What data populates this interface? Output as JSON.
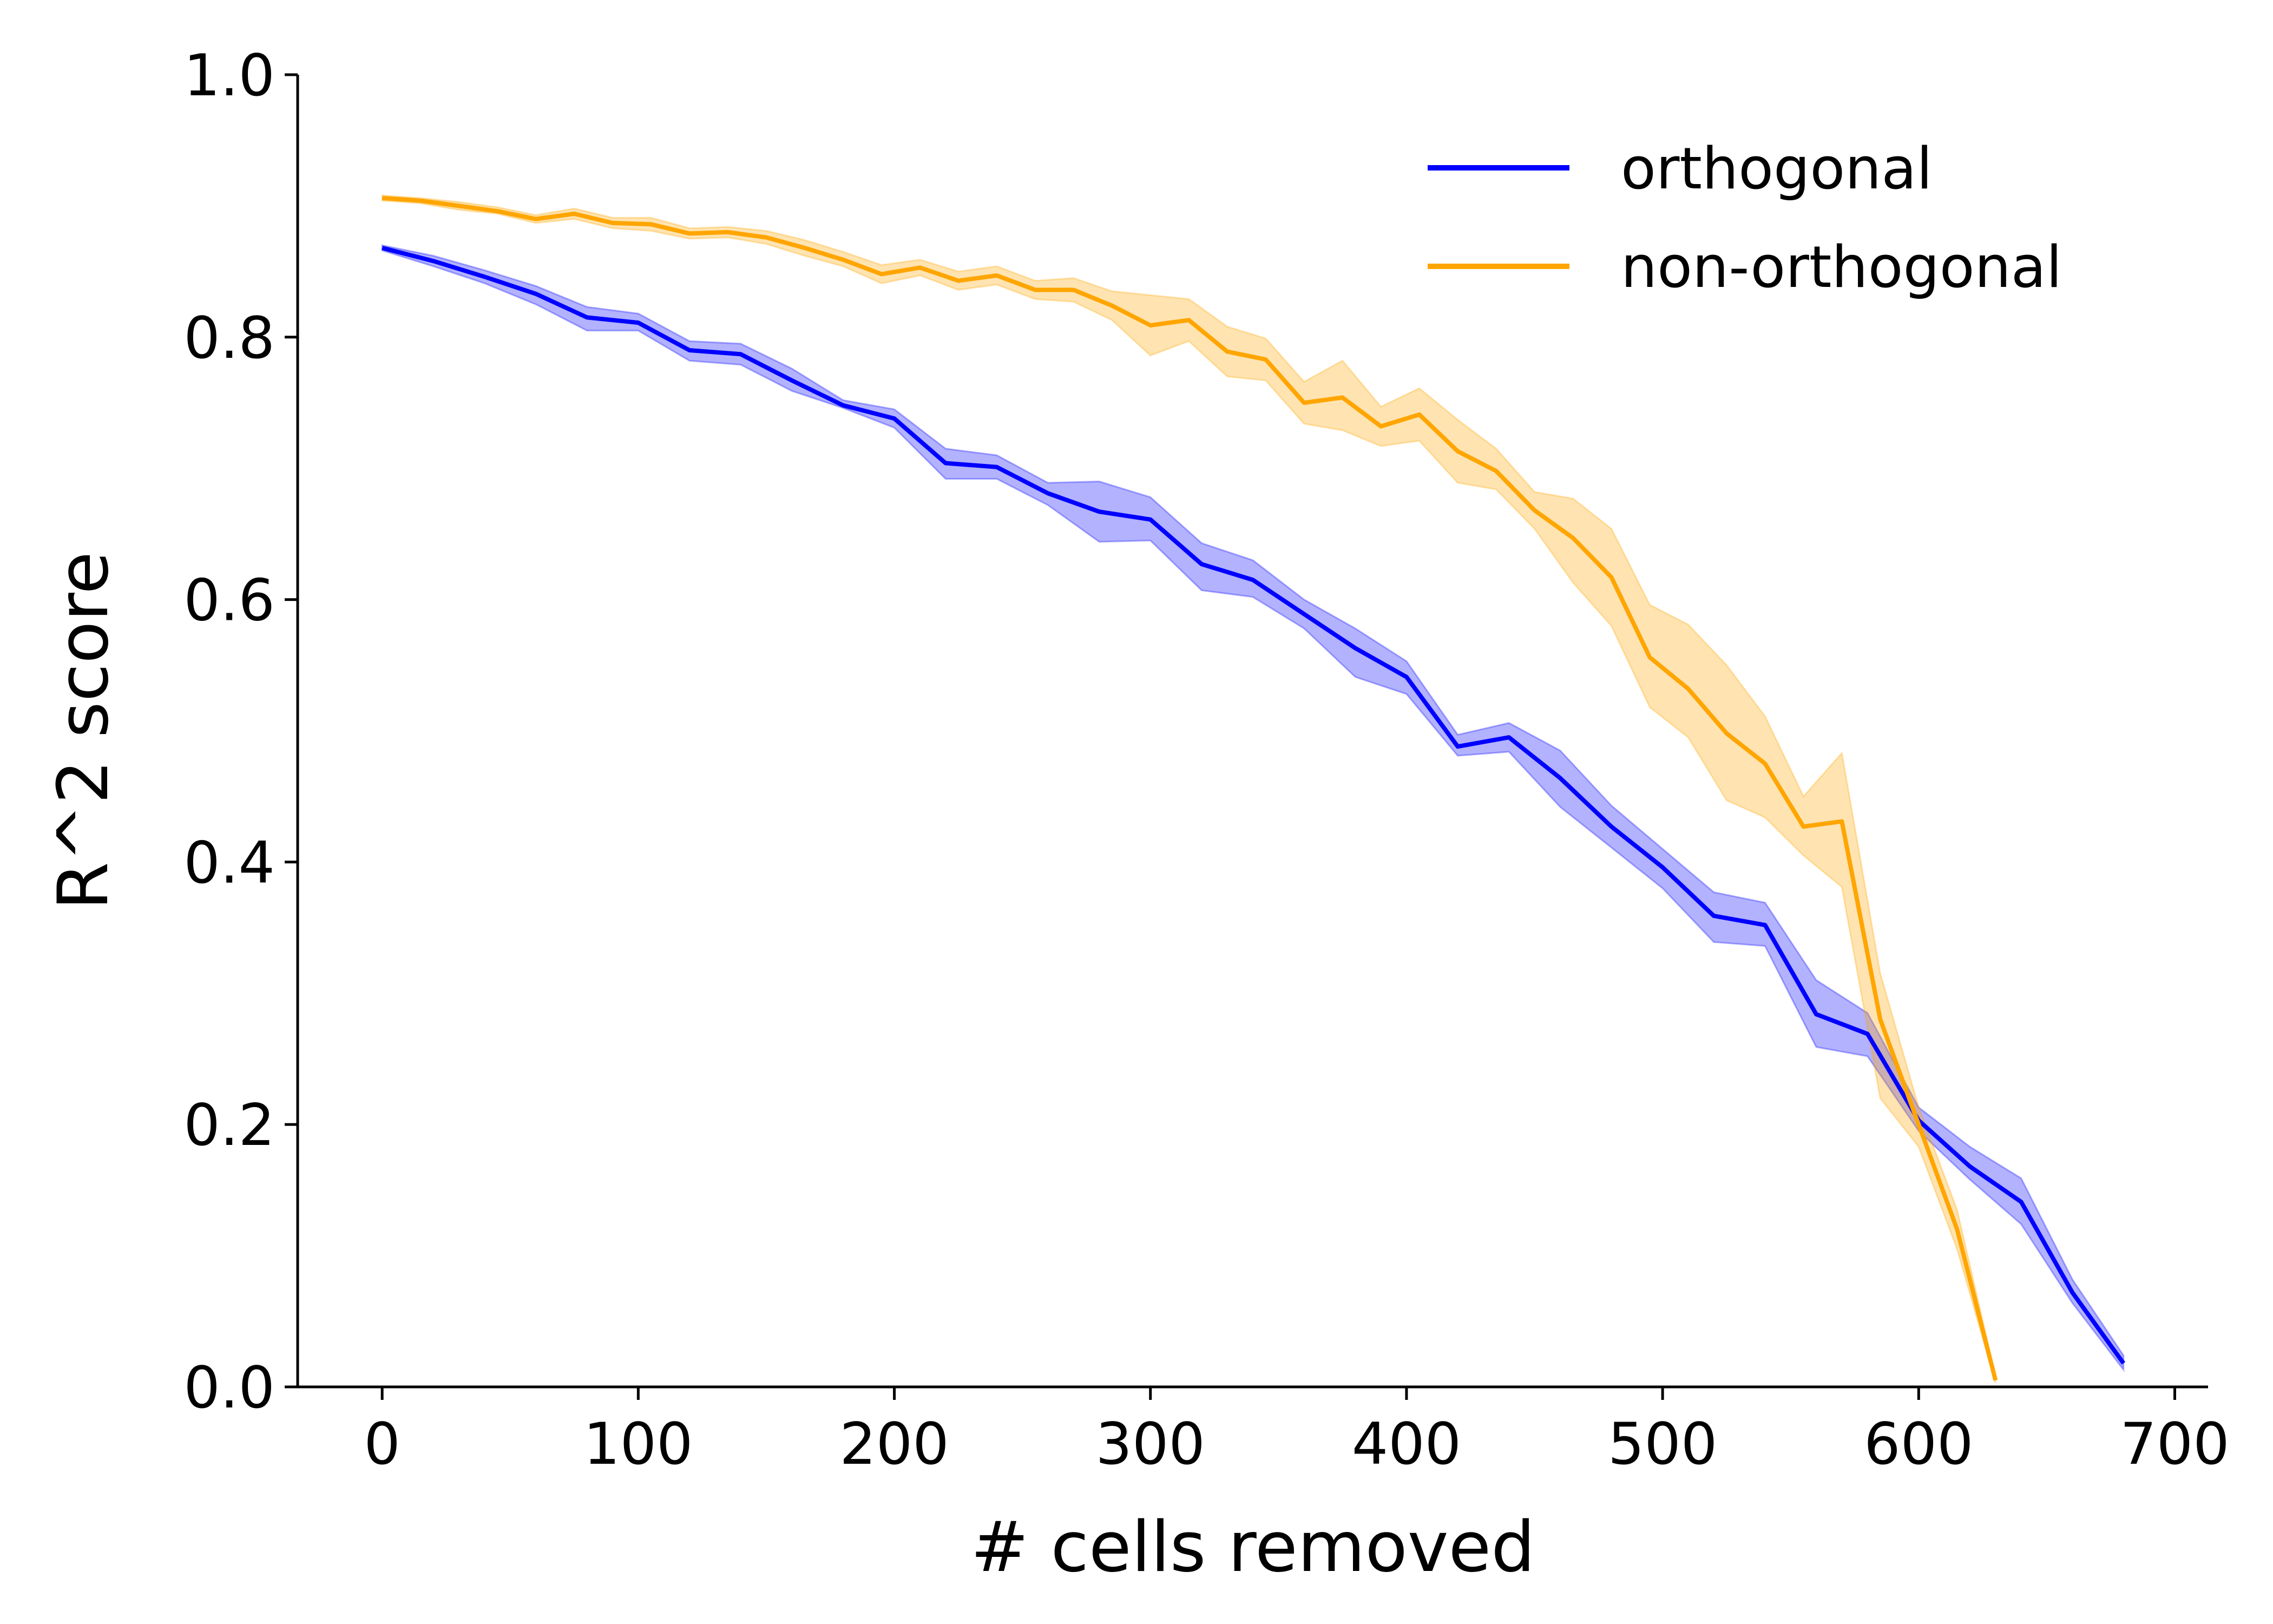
{
  "chart_data": {
    "type": "line",
    "xlabel": "# cells removed",
    "ylabel": "R^2 score",
    "xlim": [
      -33,
      713
    ],
    "ylim": [
      0,
      1
    ],
    "xticks": [
      0,
      100,
      200,
      300,
      400,
      500,
      600,
      700
    ],
    "yticks": [
      0.0,
      0.2,
      0.4,
      0.6,
      0.8,
      1.0
    ],
    "xtick_labels": [
      "0",
      "100",
      "200",
      "300",
      "400",
      "500",
      "600",
      "700"
    ],
    "ytick_labels": [
      "0.0",
      "0.2",
      "0.4",
      "0.6",
      "0.8",
      "1.0"
    ],
    "grid": false,
    "legend_position": "top-right",
    "series": [
      {
        "name": "orthogonal",
        "color": "#0000ff",
        "band_color": "#0000ff",
        "x": [
          0,
          20,
          40,
          60,
          80,
          100,
          120,
          140,
          160,
          180,
          200,
          220,
          240,
          260,
          280,
          300,
          320,
          340,
          360,
          380,
          400,
          420,
          440,
          460,
          480,
          500,
          520,
          540,
          560,
          580,
          600,
          620,
          640,
          660,
          680
        ],
        "y": [
          0.868,
          0.858,
          0.846,
          0.833,
          0.815,
          0.811,
          0.79,
          0.787,
          0.767,
          0.748,
          0.738,
          0.704,
          0.701,
          0.681,
          0.667,
          0.661,
          0.627,
          0.615,
          0.589,
          0.563,
          0.541,
          0.488,
          0.495,
          0.464,
          0.427,
          0.396,
          0.359,
          0.352,
          0.284,
          0.269,
          0.203,
          0.168,
          0.141,
          0.072,
          0.018
        ],
        "lower": [
          0.866,
          0.854,
          0.841,
          0.825,
          0.805,
          0.805,
          0.782,
          0.779,
          0.759,
          0.746,
          0.731,
          0.692,
          0.692,
          0.672,
          0.644,
          0.645,
          0.607,
          0.602,
          0.578,
          0.541,
          0.528,
          0.481,
          0.484,
          0.442,
          0.411,
          0.38,
          0.339,
          0.336,
          0.259,
          0.252,
          0.195,
          0.158,
          0.124,
          0.064,
          0.013
        ],
        "upper": [
          0.87,
          0.862,
          0.851,
          0.839,
          0.823,
          0.818,
          0.797,
          0.795,
          0.776,
          0.752,
          0.745,
          0.715,
          0.71,
          0.689,
          0.69,
          0.678,
          0.643,
          0.63,
          0.6,
          0.578,
          0.553,
          0.497,
          0.506,
          0.485,
          0.443,
          0.41,
          0.377,
          0.369,
          0.31,
          0.285,
          0.213,
          0.183,
          0.159,
          0.082,
          0.024
        ]
      },
      {
        "name": "non-orthogonal",
        "color": "#ffa500",
        "band_color": "#ffa500",
        "x": [
          0,
          15,
          30,
          45,
          60,
          75,
          90,
          105,
          120,
          135,
          150,
          165,
          180,
          195,
          210,
          225,
          240,
          255,
          270,
          285,
          300,
          315,
          330,
          345,
          360,
          375,
          390,
          405,
          420,
          435,
          450,
          465,
          480,
          495,
          510,
          525,
          540,
          555,
          570,
          585,
          600,
          615,
          630
        ],
        "y": [
          0.906,
          0.904,
          0.9,
          0.896,
          0.89,
          0.894,
          0.887,
          0.886,
          0.879,
          0.88,
          0.876,
          0.868,
          0.859,
          0.848,
          0.853,
          0.843,
          0.847,
          0.836,
          0.836,
          0.824,
          0.809,
          0.813,
          0.789,
          0.783,
          0.75,
          0.754,
          0.732,
          0.741,
          0.713,
          0.698,
          0.668,
          0.647,
          0.617,
          0.556,
          0.532,
          0.498,
          0.475,
          0.427,
          0.431,
          0.28,
          0.2,
          0.12,
          0.005
        ],
        "lower": [
          0.904,
          0.902,
          0.897,
          0.894,
          0.887,
          0.89,
          0.883,
          0.881,
          0.875,
          0.876,
          0.871,
          0.862,
          0.854,
          0.841,
          0.847,
          0.836,
          0.84,
          0.829,
          0.827,
          0.813,
          0.786,
          0.797,
          0.77,
          0.767,
          0.734,
          0.729,
          0.717,
          0.721,
          0.689,
          0.684,
          0.654,
          0.613,
          0.58,
          0.518,
          0.495,
          0.447,
          0.434,
          0.405,
          0.381,
          0.22,
          0.183,
          0.105,
          0.003
        ],
        "upper": [
          0.908,
          0.906,
          0.903,
          0.899,
          0.893,
          0.898,
          0.891,
          0.891,
          0.883,
          0.884,
          0.881,
          0.874,
          0.865,
          0.855,
          0.859,
          0.85,
          0.854,
          0.843,
          0.845,
          0.835,
          0.832,
          0.829,
          0.808,
          0.799,
          0.766,
          0.782,
          0.747,
          0.761,
          0.737,
          0.715,
          0.682,
          0.677,
          0.654,
          0.596,
          0.581,
          0.55,
          0.511,
          0.45,
          0.483,
          0.315,
          0.213,
          0.135,
          0.008
        ]
      }
    ]
  }
}
